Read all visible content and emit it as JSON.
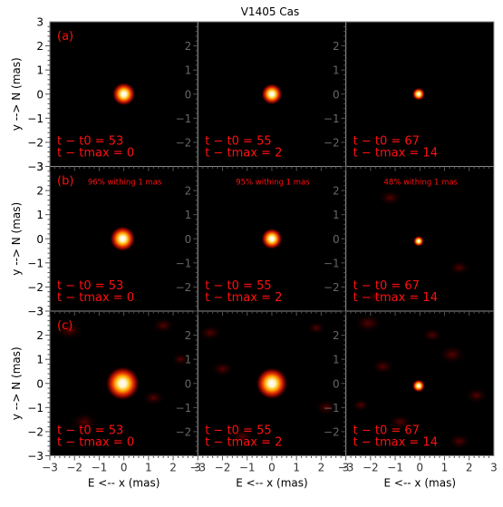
{
  "chart_data": {
    "type": "heatmap",
    "title": "V1405 Cas",
    "xlabel": "E <-- x (mas)",
    "ylabel": "y --> N (mas)",
    "xlim": [
      -3,
      3
    ],
    "ylim": [
      -3,
      3
    ],
    "x_ticks": [
      "−3",
      "−2",
      "−1",
      "0",
      "1",
      "2",
      "3"
    ],
    "y_ticks_left": [
      "−3",
      "−2",
      "−1",
      "0",
      "1",
      "2",
      "3"
    ],
    "y_ticks_inner": [
      "−2",
      "−1",
      "0",
      "1",
      "2"
    ],
    "colormap": "black-red-yellow-white",
    "label_color": "#ff1010",
    "rows": [
      {
        "label": "(a)",
        "panels": [
          {
            "tt0": "t − t0 = 53",
            "ttmax": "t − tmax = 0",
            "fraction_text": "",
            "source_x": 0.0,
            "source_y": 0.0,
            "size_mas": 0.22,
            "flux_within_1mas": null
          },
          {
            "tt0": "t − t0 = 55",
            "ttmax": "t − tmax = 2",
            "fraction_text": "",
            "source_x": 0.0,
            "source_y": 0.0,
            "size_mas": 0.2,
            "flux_within_1mas": null
          },
          {
            "tt0": "t − t0 = 67",
            "ttmax": "t − tmax = 14",
            "fraction_text": "",
            "source_x": -0.05,
            "source_y": 0.0,
            "size_mas": 0.12,
            "flux_within_1mas": null
          }
        ]
      },
      {
        "label": "(b)",
        "panels": [
          {
            "tt0": "t − t0 = 53",
            "ttmax": "t − tmax = 0",
            "fraction_text": "96% withing 1 mas",
            "source_x": -0.05,
            "source_y": 0.0,
            "size_mas": 0.24,
            "flux_within_1mas": 96
          },
          {
            "tt0": "t − t0 = 55",
            "ttmax": "t − tmax = 2",
            "fraction_text": "95% withing 1 mas",
            "source_x": 0.0,
            "source_y": 0.0,
            "size_mas": 0.2,
            "flux_within_1mas": 95
          },
          {
            "tt0": "t − t0 = 67",
            "ttmax": "t − tmax = 14",
            "fraction_text": "48% withing 1 mas",
            "source_x": -0.05,
            "source_y": -0.1,
            "size_mas": 0.1,
            "flux_within_1mas": 48
          }
        ]
      },
      {
        "label": "(c)",
        "panels": [
          {
            "tt0": "t − t0 = 53",
            "ttmax": "t − tmax = 0",
            "fraction_text": "",
            "source_x": -0.05,
            "source_y": 0.0,
            "size_mas": 0.32,
            "flux_within_1mas": null
          },
          {
            "tt0": "t − t0 = 55",
            "ttmax": "t − tmax = 2",
            "fraction_text": "",
            "source_x": 0.0,
            "source_y": 0.0,
            "size_mas": 0.3,
            "flux_within_1mas": null
          },
          {
            "tt0": "t − t0 = 67",
            "ttmax": "t − tmax = 14",
            "fraction_text": "",
            "source_x": -0.05,
            "source_y": -0.1,
            "size_mas": 0.12,
            "flux_within_1mas": null
          }
        ]
      }
    ]
  }
}
